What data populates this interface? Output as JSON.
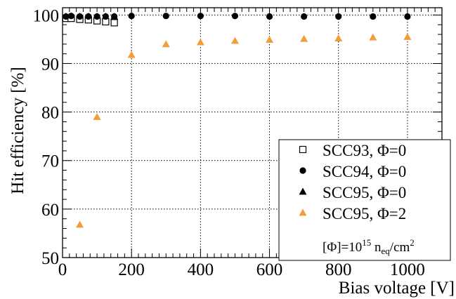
{
  "chart_data": {
    "type": "scatter",
    "xlabel": "Bias voltage [V]",
    "ylabel": "Hit efficiency [%]",
    "xlim": [
      0,
      1100
    ],
    "ylim": [
      50,
      101.5
    ],
    "x_ticks": [
      0,
      200,
      400,
      600,
      800,
      1000
    ],
    "y_ticks": [
      50,
      60,
      70,
      80,
      90,
      100
    ],
    "grid": true,
    "legend_position": "bottom-right",
    "legend_note": {
      "prefix": "[Φ]=10",
      "exponent": "15",
      "unit_main": " n",
      "unit_sub": "eq",
      "unit_after": "/cm",
      "unit_exp": "2"
    },
    "series": [
      {
        "name": "SCC93, Φ=0",
        "marker": "open-square",
        "color": "#000000",
        "x": [
          10,
          25,
          50,
          75,
          100,
          125,
          150
        ],
        "y": [
          99.3,
          99.3,
          99.1,
          99.0,
          98.8,
          98.6,
          98.4
        ]
      },
      {
        "name": "SCC94, Φ=0",
        "marker": "filled-circle",
        "color": "#000000",
        "x": [
          10,
          25,
          50,
          75,
          100,
          125,
          150,
          200,
          300,
          400,
          500,
          600,
          700,
          800,
          900,
          1000
        ],
        "y": [
          99.7,
          99.8,
          99.7,
          99.7,
          99.7,
          99.7,
          99.7,
          99.8,
          99.8,
          99.8,
          99.8,
          99.7,
          99.7,
          99.7,
          99.7,
          99.7
        ]
      },
      {
        "name": "SCC95, Φ=0",
        "marker": "filled-triangle",
        "color": "#000000",
        "x": [
          10,
          25,
          50,
          75,
          100,
          125,
          150
        ],
        "y": [
          99.7,
          99.7,
          99.7,
          99.7,
          99.7,
          99.7,
          99.7
        ]
      },
      {
        "name": "SCC95, Φ=2",
        "marker": "filled-triangle",
        "color": "#f39c3a",
        "x": [
          50,
          100,
          200,
          300,
          400,
          500,
          600,
          700,
          800,
          900,
          1000
        ],
        "y": [
          56.8,
          79.0,
          91.8,
          94.0,
          94.4,
          94.7,
          94.9,
          95.1,
          95.2,
          95.4,
          95.5
        ]
      }
    ]
  }
}
